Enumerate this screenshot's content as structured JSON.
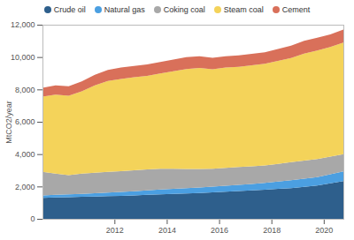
{
  "chart_data": {
    "type": "area",
    "stacked": true,
    "legend": "top",
    "grid": false,
    "y_label": "MtCO2/year",
    "x": [
      2009.25,
      2009.75,
      2010.25,
      2010.75,
      2011.25,
      2011.75,
      2012.25,
      2012.75,
      2013.25,
      2013.75,
      2014.25,
      2014.75,
      2015.25,
      2015.75,
      2016.25,
      2016.75,
      2017.25,
      2017.75,
      2018.25,
      2018.75,
      2019.25,
      2019.75,
      2020.25,
      2020.75
    ],
    "xlim": [
      2009.25,
      2020.75
    ],
    "xticks": [
      2012,
      2014,
      2016,
      2018,
      2020
    ],
    "ylim": [
      0,
      12000
    ],
    "yticks": [
      0,
      {
        "value": 2000,
        "label": "2,000"
      },
      {
        "value": 4000,
        "label": "4,000"
      },
      {
        "value": 6000,
        "label": "6,000"
      },
      {
        "value": 8000,
        "label": "8,000"
      },
      {
        "value": 10000,
        "label": "10,000"
      },
      {
        "value": 12000,
        "label": "12,000"
      }
    ],
    "series": [
      {
        "name": "Crude oil",
        "color": "#2e5f8c",
        "values": [
          1300,
          1320,
          1340,
          1360,
          1380,
          1400,
          1420,
          1450,
          1480,
          1510,
          1540,
          1570,
          1600,
          1640,
          1680,
          1720,
          1760,
          1800,
          1850,
          1900,
          1980,
          2060,
          2200,
          2330
        ]
      },
      {
        "name": "Natural gas",
        "color": "#4b9fe1",
        "values": [
          150,
          160,
          170,
          180,
          200,
          220,
          240,
          260,
          280,
          300,
          310,
          320,
          340,
          350,
          360,
          380,
          400,
          420,
          450,
          480,
          500,
          520,
          560,
          600
        ]
      },
      {
        "name": "Coking coal",
        "color": "#a8a8a8",
        "values": [
          1450,
          1320,
          1190,
          1260,
          1270,
          1280,
          1290,
          1290,
          1290,
          1290,
          1250,
          1190,
          1140,
          1110,
          1110,
          1100,
          1090,
          1080,
          1100,
          1120,
          1120,
          1120,
          1090,
          1070
        ]
      },
      {
        "name": "Steam coal",
        "color": "#f4d35a",
        "values": [
          4650,
          4880,
          4910,
          5080,
          5400,
          5620,
          5700,
          5750,
          5790,
          5880,
          6020,
          6180,
          6250,
          6150,
          6200,
          6200,
          6240,
          6280,
          6360,
          6440,
          6620,
          6710,
          6770,
          6900
        ]
      },
      {
        "name": "Cement",
        "color": "#d9705a",
        "values": [
          550,
          570,
          590,
          620,
          650,
          680,
          700,
          700,
          710,
          720,
          730,
          740,
          720,
          700,
          700,
          700,
          710,
          720,
          740,
          760,
          780,
          790,
          780,
          800
        ]
      }
    ]
  }
}
